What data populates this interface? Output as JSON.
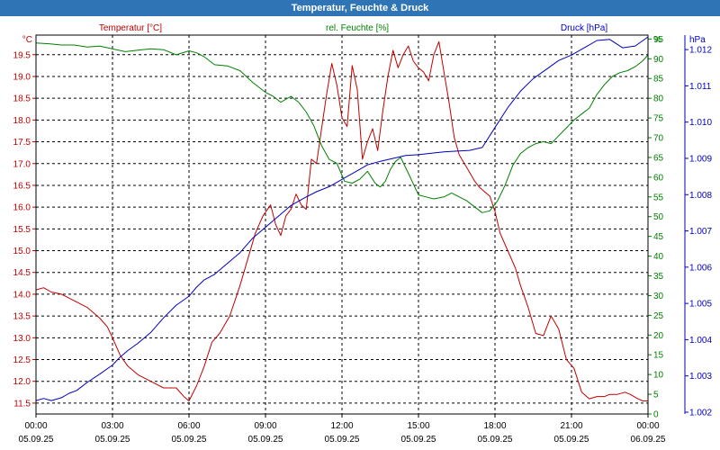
{
  "window": {
    "title": "Temperatur, Feuchte & Druck"
  },
  "chart_data": {
    "type": "line",
    "title": "Temperatur, Feuchte & Druck",
    "grid": true,
    "x_ticks": [
      {
        "time": "00:00",
        "date": "05.09.25"
      },
      {
        "time": "03:00",
        "date": "05.09.25"
      },
      {
        "time": "06:00",
        "date": "05.09.25"
      },
      {
        "time": "09:00",
        "date": "05.09.25"
      },
      {
        "time": "12:00",
        "date": "05.09.25"
      },
      {
        "time": "15:00",
        "date": "05.09.25"
      },
      {
        "time": "18:00",
        "date": "05.09.25"
      },
      {
        "time": "21:00",
        "date": "05.09.25"
      },
      {
        "time": "00:00",
        "date": "06.09.25"
      }
    ],
    "x_range_hours": [
      0,
      24
    ],
    "axes": {
      "temperature": {
        "label": "Temperatur [°C]",
        "unit": "°C",
        "range": [
          11.25,
          19.95
        ],
        "ticks": [
          "11.5",
          "12.0",
          "12.5",
          "13.0",
          "13.5",
          "14.0",
          "14.5",
          "15.0",
          "15.5",
          "16.0",
          "16.5",
          "17.0",
          "17.5",
          "18.0",
          "18.5",
          "19.0",
          "19.5"
        ],
        "color": "#c00000"
      },
      "humidity": {
        "label": "rel. Feuchte [%]",
        "unit": "%",
        "range": [
          0,
          96
        ],
        "ticks": [
          "0",
          "5",
          "10",
          "15",
          "20",
          "25",
          "30",
          "35",
          "40",
          "45",
          "50",
          "55",
          "60",
          "65",
          "70",
          "75",
          "80",
          "85",
          "90",
          "95"
        ],
        "color": "#008000"
      },
      "pressure": {
        "label": "Druck [hPa]",
        "unit": "hPa",
        "range": [
          1.00195,
          1.0124
        ],
        "ticks": [
          "1.002",
          "1.003",
          "1.004",
          "1.005",
          "1.006",
          "1.007",
          "1.008",
          "1.009",
          "1.010",
          "1.011",
          "1.012"
        ],
        "color": "#0000c0"
      }
    },
    "series": [
      {
        "name": "Temperatur",
        "axis": "temperature",
        "color": "#c00000",
        "x": [
          0,
          0.3,
          0.6,
          1.0,
          1.5,
          2.0,
          2.5,
          2.8,
          3.0,
          3.3,
          3.6,
          4.0,
          4.5,
          5.0,
          5.5,
          5.8,
          6.0,
          6.3,
          6.6,
          6.9,
          7.2,
          7.6,
          8.0,
          8.3,
          8.6,
          8.9,
          9.2,
          9.4,
          9.6,
          9.8,
          10.0,
          10.2,
          10.4,
          10.6,
          10.8,
          11.0,
          11.2,
          11.4,
          11.6,
          11.8,
          12.0,
          12.2,
          12.4,
          12.6,
          12.8,
          13.0,
          13.2,
          13.4,
          13.6,
          13.8,
          14.0,
          14.2,
          14.4,
          14.6,
          14.8,
          15.0,
          15.2,
          15.4,
          15.6,
          15.8,
          16.0,
          16.2,
          16.4,
          16.6,
          16.8,
          17.0,
          17.2,
          17.4,
          17.6,
          17.8,
          18.0,
          18.2,
          18.5,
          18.8,
          19.0,
          19.3,
          19.6,
          19.9,
          20.2,
          20.5,
          20.8,
          21.1,
          21.4,
          21.7,
          22.0,
          22.3,
          22.5,
          22.8,
          23.1,
          23.3,
          23.6,
          23.8,
          24.0
        ],
        "values": [
          14.1,
          14.15,
          14.05,
          14.0,
          13.85,
          13.7,
          13.45,
          13.25,
          13.0,
          12.6,
          12.35,
          12.15,
          12.0,
          11.85,
          11.85,
          11.65,
          11.55,
          11.9,
          12.35,
          12.9,
          13.1,
          13.5,
          14.2,
          14.8,
          15.4,
          15.8,
          16.05,
          15.6,
          15.35,
          15.8,
          15.95,
          16.3,
          16.05,
          15.95,
          17.1,
          17.0,
          17.8,
          18.6,
          19.3,
          18.8,
          18.05,
          17.85,
          19.25,
          18.7,
          17.1,
          17.5,
          17.8,
          17.3,
          18.2,
          19.0,
          19.6,
          19.2,
          19.5,
          19.7,
          19.35,
          19.2,
          19.1,
          18.9,
          19.5,
          19.8,
          19.1,
          18.4,
          17.6,
          17.2,
          17.0,
          16.8,
          16.6,
          16.45,
          16.35,
          16.25,
          15.9,
          15.4,
          15.0,
          14.6,
          14.2,
          13.7,
          13.1,
          13.05,
          13.5,
          13.2,
          12.5,
          12.3,
          11.75,
          11.6,
          11.65,
          11.65,
          11.7,
          11.7,
          11.75,
          11.7,
          11.6,
          11.55,
          11.55
        ]
      },
      {
        "name": "rel. Feuchte",
        "axis": "humidity",
        "color": "#008000",
        "x": [
          0,
          0.5,
          1.0,
          1.5,
          2.0,
          2.5,
          3.0,
          3.5,
          4.0,
          4.5,
          5.0,
          5.5,
          6.0,
          6.3,
          6.6,
          7.0,
          7.5,
          8.0,
          8.5,
          9.0,
          9.3,
          9.6,
          10.0,
          10.3,
          10.6,
          10.9,
          11.2,
          11.5,
          11.8,
          12.1,
          12.4,
          12.7,
          13.0,
          13.3,
          13.5,
          13.7,
          13.9,
          14.1,
          14.3,
          14.6,
          15.0,
          15.3,
          15.6,
          16.0,
          16.3,
          16.6,
          16.9,
          17.2,
          17.5,
          17.8,
          18.1,
          18.4,
          18.7,
          19.0,
          19.3,
          19.6,
          19.9,
          20.2,
          20.5,
          20.8,
          21.1,
          21.4,
          21.7,
          22.0,
          22.3,
          22.6,
          22.9,
          23.2,
          23.5,
          23.8,
          24.0
        ],
        "values": [
          94,
          93.8,
          93.5,
          93.5,
          93.0,
          93.2,
          92.5,
          91.8,
          92.2,
          92.5,
          92.3,
          91.0,
          92.0,
          91.5,
          90.5,
          88.5,
          88.2,
          87.0,
          84.0,
          81.5,
          80.5,
          79.0,
          80.5,
          79.0,
          76.5,
          73.0,
          68.0,
          64.5,
          63.5,
          59.0,
          58.5,
          59.5,
          61.5,
          58.5,
          57.5,
          59.0,
          62.0,
          64.0,
          65.0,
          61.0,
          55.5,
          55.0,
          54.5,
          55.0,
          56.0,
          55.0,
          54.0,
          52.5,
          51.0,
          51.5,
          54.0,
          58.0,
          63.0,
          66.0,
          67.5,
          68.5,
          69.0,
          68.5,
          70.5,
          72.5,
          74.5,
          76.0,
          77.5,
          81.0,
          83.5,
          85.5,
          86.5,
          87.0,
          88.0,
          89.5,
          91.0
        ]
      },
      {
        "name": "Druck",
        "axis": "pressure",
        "color": "#0000c0",
        "x": [
          0,
          0.3,
          0.6,
          1.0,
          1.3,
          1.6,
          2.0,
          2.5,
          3.0,
          3.3,
          3.6,
          4.0,
          4.5,
          5.0,
          5.5,
          6.0,
          6.3,
          6.6,
          7.0,
          7.5,
          8.0,
          8.5,
          9.0,
          9.5,
          10.0,
          10.5,
          11.0,
          11.5,
          12.0,
          12.5,
          13.0,
          13.5,
          14.0,
          14.5,
          15.0,
          15.5,
          16.0,
          16.5,
          17.0,
          17.5,
          18.0,
          18.5,
          19.0,
          19.5,
          20.0,
          20.5,
          21.0,
          21.5,
          22.0,
          22.5,
          23.0,
          23.5,
          24.0
        ],
        "values": [
          1.00232,
          1.00238,
          1.00232,
          1.0024,
          1.00252,
          1.0026,
          1.00282,
          1.00305,
          1.0033,
          1.00352,
          1.0037,
          1.0039,
          1.0042,
          1.0046,
          1.00495,
          1.0052,
          1.00545,
          1.00565,
          1.0058,
          1.0061,
          1.0064,
          1.0068,
          1.0071,
          1.0074,
          1.0077,
          1.0079,
          1.00808,
          1.00822,
          1.00842,
          1.00862,
          1.00882,
          1.00892,
          1.009,
          1.00908,
          1.0091,
          1.00914,
          1.00918,
          1.0092,
          1.00922,
          1.0093,
          1.00985,
          1.0104,
          1.01085,
          1.0112,
          1.01145,
          1.0117,
          1.01185,
          1.01205,
          1.01225,
          1.01228,
          1.01205,
          1.0121,
          1.01235
        ]
      }
    ]
  }
}
